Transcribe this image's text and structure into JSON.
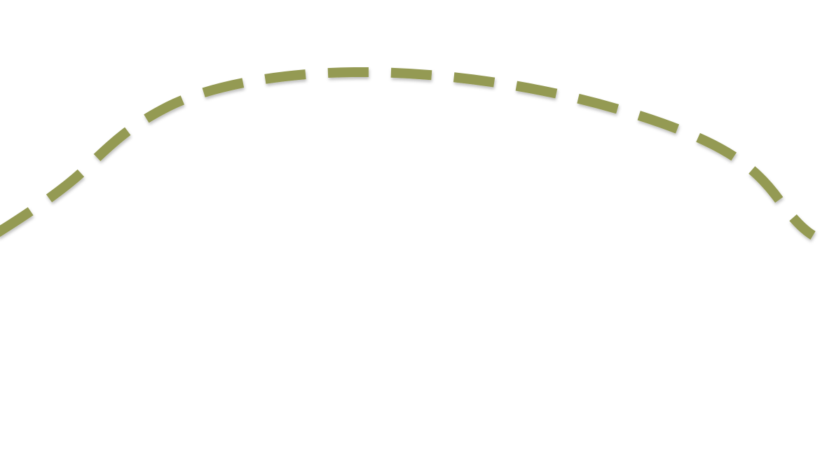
{
  "curve": {
    "color": "#949a52",
    "style": "dashed"
  }
}
